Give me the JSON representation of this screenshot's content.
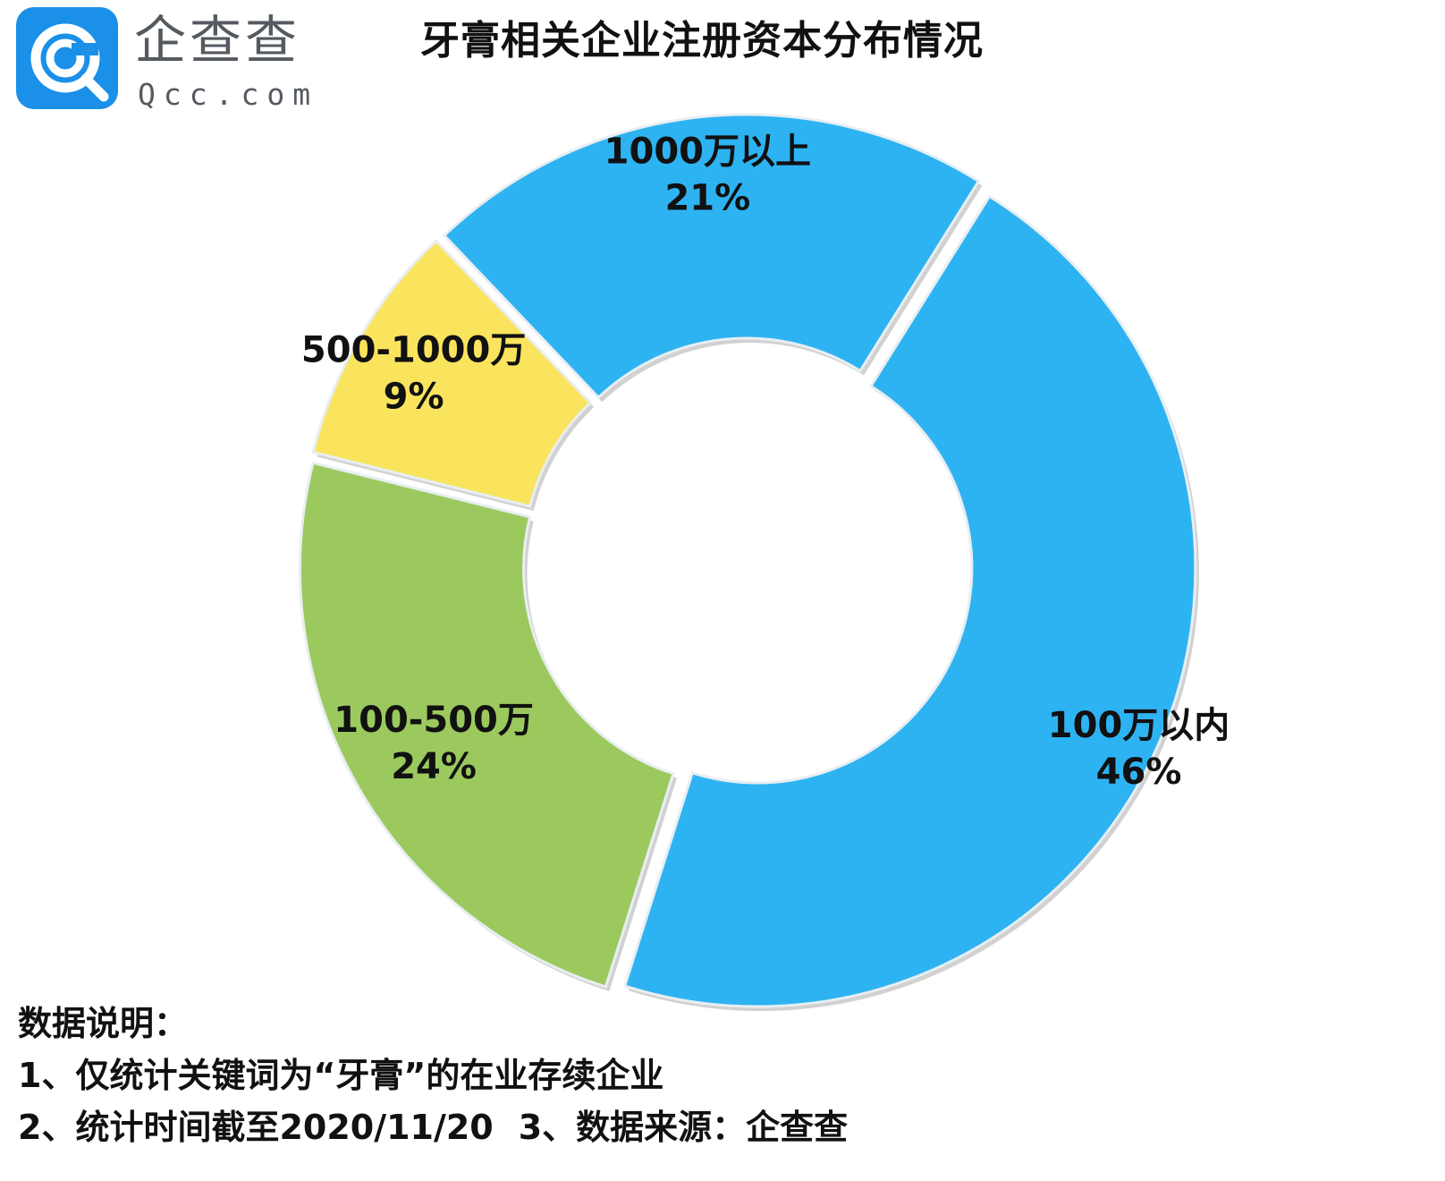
{
  "brand": {
    "name_cn": "企查查",
    "domain": "Qcc.com",
    "badge_color": "#1a90e8"
  },
  "chart_data": {
    "type": "pie",
    "title": "牙膏相关企业注册资本分布情况",
    "categories": [
      "100万以内",
      "100-500万",
      "500-1000万",
      "1000万以上"
    ],
    "values": [
      46,
      24,
      9,
      21
    ],
    "value_labels": [
      "46%",
      "24%",
      "9%",
      "21%"
    ],
    "colors": [
      "#2eb3f2",
      "#9bc95e",
      "#fae45e",
      "#2eb3f2"
    ],
    "donut": true,
    "legend": "none"
  },
  "notes": {
    "heading": "数据说明：",
    "line1": "1、仅统计关键词为“牙膏”的在业存续企业",
    "line2a": "2、统计时间截至2020/11/20",
    "line2b": "3、数据来源：企查查"
  }
}
